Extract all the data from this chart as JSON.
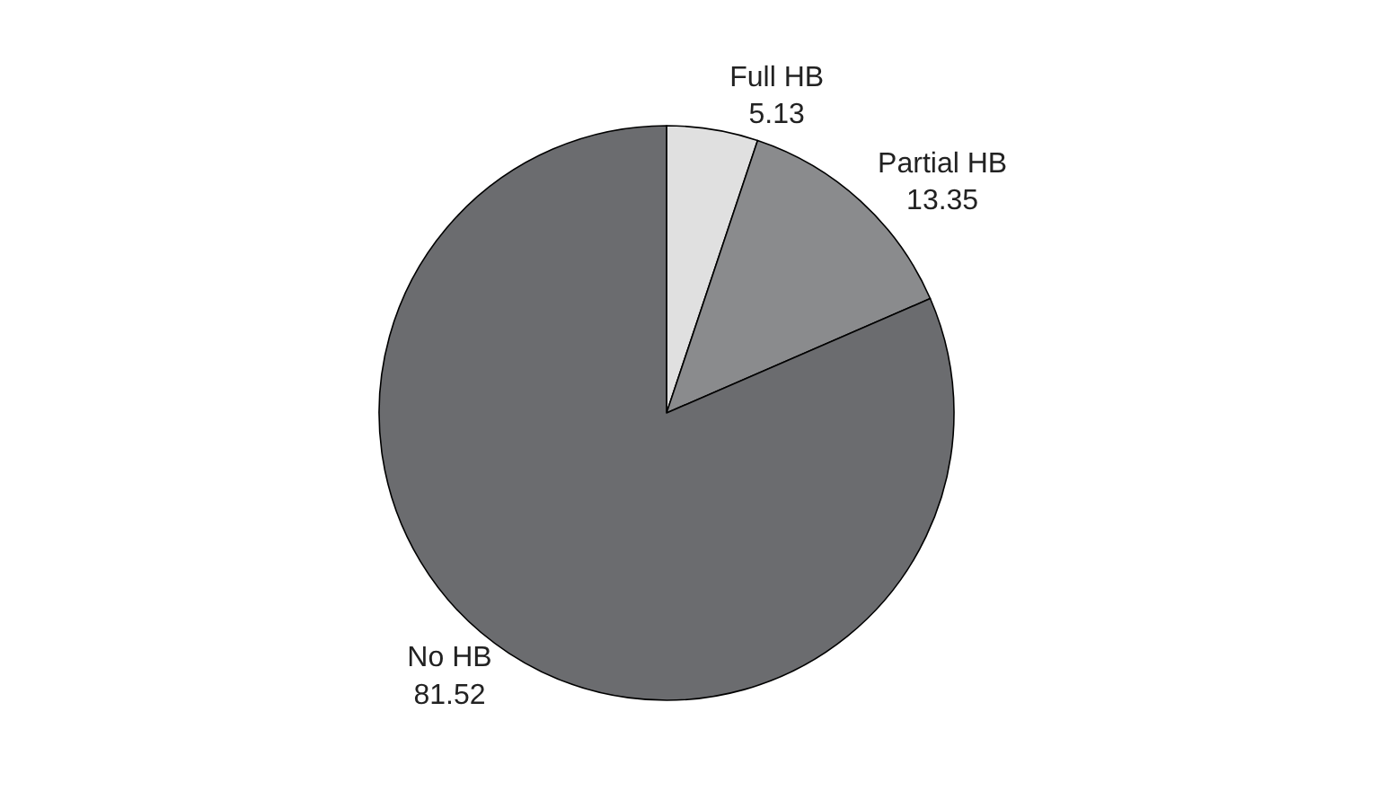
{
  "chart_data": {
    "type": "pie",
    "categories": [
      "Full HB",
      "Partial HB",
      "No HB"
    ],
    "values": [
      5.13,
      13.35,
      81.52
    ],
    "colors": [
      "#e0e0e0",
      "#8a8b8d",
      "#6b6c6f"
    ],
    "data_labels": true,
    "legend": false
  }
}
